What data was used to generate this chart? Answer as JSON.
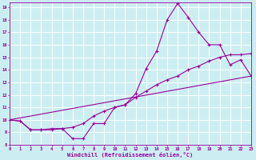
{
  "xlabel": "Windchill (Refroidissement éolien,°C)",
  "background_color": "#cceef2",
  "grid_color": "#ffffff",
  "line_color": "#990099",
  "xlim": [
    0,
    23
  ],
  "ylim": [
    8,
    19.4
  ],
  "yticks": [
    8,
    9,
    10,
    11,
    12,
    13,
    14,
    15,
    16,
    17,
    18,
    19
  ],
  "xticks": [
    0,
    1,
    2,
    3,
    4,
    5,
    6,
    7,
    8,
    9,
    10,
    11,
    12,
    13,
    14,
    15,
    16,
    17,
    18,
    19,
    20,
    21,
    22,
    23
  ],
  "line1_x": [
    0,
    1,
    2,
    3,
    4,
    5,
    6,
    7,
    8,
    9,
    10,
    11,
    12,
    13,
    14,
    15,
    16,
    17,
    18,
    19,
    20,
    21,
    22,
    23
  ],
  "line1_y": [
    10.0,
    9.9,
    9.2,
    9.2,
    9.2,
    9.3,
    8.5,
    8.5,
    9.7,
    9.7,
    11.0,
    11.2,
    12.1,
    14.1,
    15.5,
    18.0,
    19.3,
    18.2,
    17.0,
    16.0,
    16.0,
    14.4,
    14.8,
    13.5
  ],
  "line2_x": [
    0,
    1,
    2,
    3,
    4,
    5,
    6,
    7,
    8,
    9,
    10,
    11,
    12,
    13,
    14,
    15,
    16,
    17,
    18,
    19,
    20,
    21,
    22,
    23
  ],
  "line2_y": [
    10.0,
    9.9,
    9.2,
    9.2,
    9.3,
    9.3,
    9.4,
    9.7,
    10.3,
    10.7,
    11.0,
    11.2,
    11.8,
    12.3,
    12.8,
    13.2,
    13.5,
    14.0,
    14.3,
    14.7,
    15.0,
    15.2,
    15.2,
    15.3
  ],
  "line3_x": [
    0,
    23
  ],
  "line3_y": [
    10.0,
    13.5
  ]
}
